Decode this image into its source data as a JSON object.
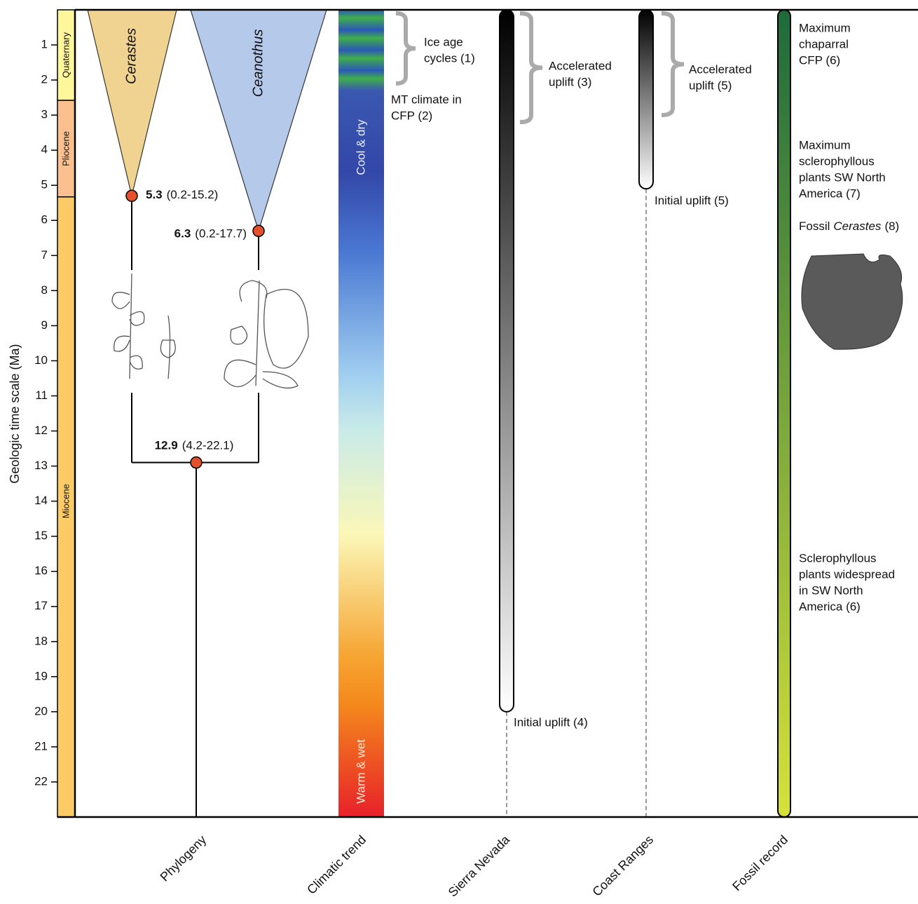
{
  "chart_data": {
    "type": "timeline",
    "y_label": "Geologic time scale (Ma)",
    "ylim": [
      0,
      23
    ],
    "yticks": [
      1,
      2,
      3,
      4,
      5,
      6,
      7,
      8,
      9,
      10,
      11,
      12,
      13,
      14,
      15,
      16,
      17,
      18,
      19,
      20,
      21,
      22
    ],
    "epochs": [
      {
        "name": "Quaternary",
        "start": 0,
        "end": 2.58,
        "color": "#fff79a"
      },
      {
        "name": "Pliocene",
        "start": 2.58,
        "end": 5.33,
        "color": "#fbc08e"
      },
      {
        "name": "Miocene",
        "start": 5.33,
        "end": 23,
        "color": "#fdcb66"
      }
    ],
    "columns": [
      "Phylogeny",
      "Climatic trend",
      "Sierra Nevada",
      "Coast Ranges",
      "Fossil record"
    ],
    "phylogeny": {
      "node_color": "#e4502c",
      "clades": [
        {
          "name": "Cerastes",
          "color": "#f0d391",
          "crown": 5.3,
          "interval": "(0.2-15.2)"
        },
        {
          "name": "Ceanothus",
          "color": "#b5c9ea",
          "crown": 6.3,
          "interval": "(0.2-17.7)"
        }
      ],
      "root": {
        "value": 12.9,
        "interval": "(4.2-22.1)"
      }
    },
    "climate": {
      "top_label": "Cool & dry",
      "bottom_label": "Warm & wet",
      "annotations": [
        {
          "lines": [
            "Ice age",
            "cycles (1)"
          ],
          "brace": [
            0.1,
            2.1
          ]
        },
        {
          "lines": [
            "MT climate in",
            "CFP (2)"
          ]
        }
      ]
    },
    "uplift": [
      {
        "start": 20,
        "label": "Initial uplift (4)",
        "accelerated": {
          "lines": [
            "Accelerated",
            "uplift (3)"
          ],
          "brace": [
            0.1,
            3.2
          ]
        }
      },
      {
        "start": 5.1,
        "label": "Initial uplift (5)",
        "accelerated": {
          "lines": [
            "Accelerated",
            "uplift (5)"
          ],
          "brace": [
            0.1,
            3
          ]
        }
      }
    ],
    "fossil": {
      "color_top": "#1d6a3c",
      "color_bottom": "#d6e23a",
      "annotations": [
        {
          "lines": [
            "Maximum",
            "chaparral",
            "CFP (6)"
          ]
        },
        {
          "lines": [
            "Maximum",
            "sclerophyllous",
            "plants SW North",
            "America (7)"
          ]
        },
        {
          "lines": [
            "Sclerophyllous",
            "plants widespread",
            "in SW North",
            "America (6)"
          ]
        }
      ],
      "fossil_cerastes": {
        "prefix": "Fossil",
        "taxon": "Cerastes",
        "suffix": "(8)"
      }
    }
  }
}
